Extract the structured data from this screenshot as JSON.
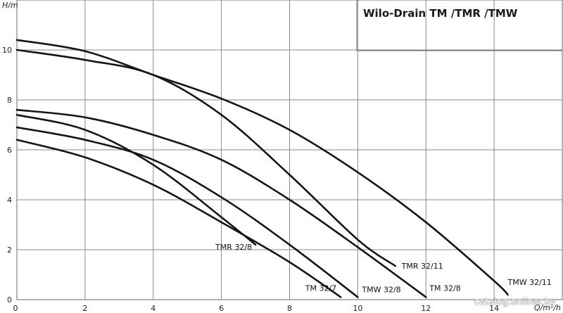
{
  "chart_data": {
    "type": "line",
    "title": "Wilo-Drain TM /TMR /TMW",
    "xlabel": "Q/m³/h",
    "ylabel": "H/m",
    "xlim": [
      0,
      16
    ],
    "ylim": [
      0,
      12
    ],
    "x_ticks": [
      0,
      2,
      4,
      6,
      8,
      10,
      12,
      14
    ],
    "y_ticks": [
      0,
      2,
      4,
      6,
      8,
      10
    ],
    "grid": true,
    "series": [
      {
        "name": "TMW 32/11",
        "x": [
          0,
          2,
          4,
          6,
          8,
          10,
          12,
          14,
          14.4
        ],
        "y": [
          10.4,
          9.95,
          9.0,
          8.05,
          6.8,
          5.1,
          3.1,
          0.75,
          0.2
        ]
      },
      {
        "name": "TMR 32/11",
        "x": [
          0,
          2,
          4,
          6,
          8,
          10,
          11.1
        ],
        "y": [
          10.0,
          9.6,
          9.0,
          7.4,
          5.0,
          2.4,
          1.35
        ]
      },
      {
        "name": "TM 32/8",
        "x": [
          0,
          2,
          4,
          6,
          8,
          10,
          12
        ],
        "y": [
          7.6,
          7.3,
          6.6,
          5.6,
          4.0,
          2.1,
          0.1
        ]
      },
      {
        "name": "TMW 32/8",
        "x": [
          0,
          2,
          4,
          6,
          8,
          10
        ],
        "y": [
          6.9,
          6.4,
          5.6,
          4.1,
          2.2,
          0.1
        ]
      },
      {
        "name": "TMR 32/8",
        "x": [
          0,
          2,
          4,
          6,
          7
        ],
        "y": [
          7.4,
          6.8,
          5.4,
          3.3,
          2.2
        ]
      },
      {
        "name": "TM 32/7",
        "x": [
          0,
          2,
          4,
          6,
          8,
          9.5
        ],
        "y": [
          6.4,
          5.7,
          4.6,
          3.1,
          1.5,
          0.1
        ]
      }
    ],
    "annotations": [
      {
        "text": "TMW 32/11",
        "x": 14.4,
        "y": 0.2
      },
      {
        "text": "TMR 32/11",
        "x": 11.1,
        "y": 1.35
      },
      {
        "text": "TM 32/8",
        "x": 12,
        "y": 0.1
      },
      {
        "text": "TMW 32/8",
        "x": 10,
        "y": 0.1
      },
      {
        "text": "TMR 32/8",
        "x": 7,
        "y": 2.2
      },
      {
        "text": "TM 32/7",
        "x": 9.5,
        "y": 0.1
      }
    ]
  },
  "watermark": "catalog.onliner.by"
}
